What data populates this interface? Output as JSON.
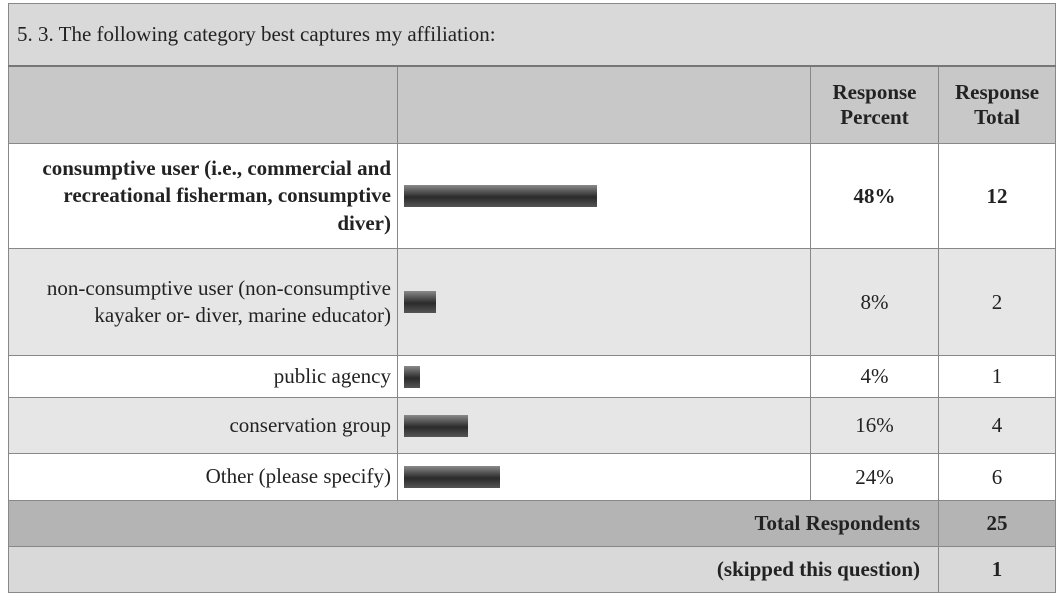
{
  "title": "5. 3. The following category best captures my affiliation:",
  "header": {
    "percent": "Response Percent",
    "total": "Response Total"
  },
  "rows": [
    {
      "label": "consumptive user (i.e., commercial and recreational fisherman, consumptive diver)",
      "percent": 48,
      "percent_label": "48%",
      "total": 12,
      "bold": true
    },
    {
      "label": "non-consumptive user (non-consumptive kayaker or- diver, marine educator)",
      "percent": 8,
      "percent_label": "8%",
      "total": 2
    },
    {
      "label": "public agency",
      "percent": 4,
      "percent_label": "4%",
      "total": 1
    },
    {
      "label": "conservation group",
      "percent": 16,
      "percent_label": "16%",
      "total": 4
    },
    {
      "label": "Other (please specify)",
      "percent": 24,
      "percent_label": "24%",
      "total": 6
    }
  ],
  "footer": [
    {
      "label": "Total Respondents",
      "total": 25
    },
    {
      "label": "(skipped this question)",
      "total": 1
    }
  ]
}
